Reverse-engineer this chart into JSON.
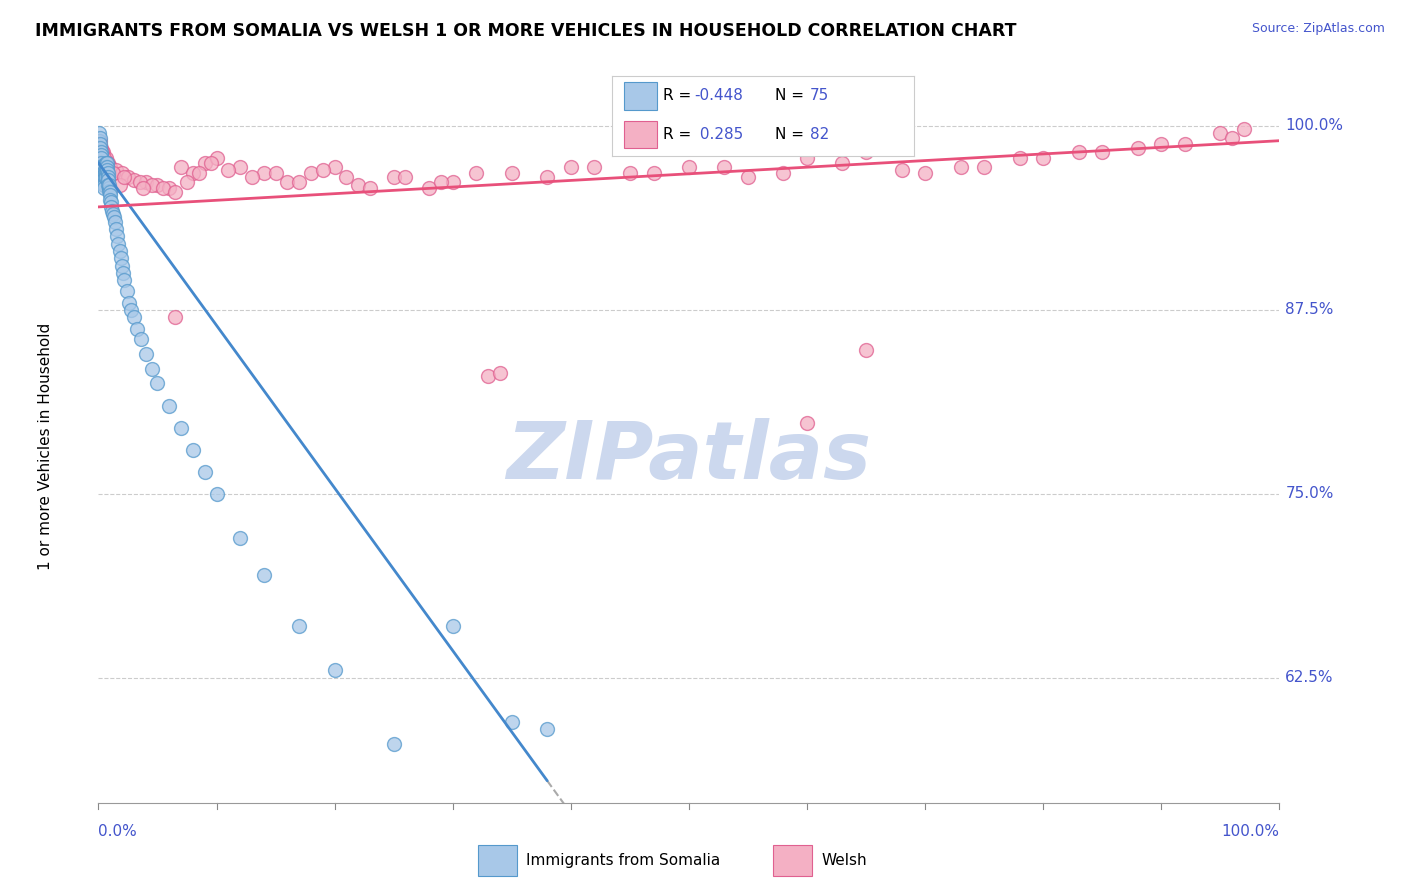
{
  "title": "IMMIGRANTS FROM SOMALIA VS WELSH 1 OR MORE VEHICLES IN HOUSEHOLD CORRELATION CHART",
  "source": "Source: ZipAtlas.com",
  "ylabel": "1 or more Vehicles in Household",
  "R1": -0.448,
  "N1": 75,
  "R2": 0.285,
  "N2": 82,
  "color1": "#a8c8e8",
  "color2": "#f4b0c4",
  "edge_color1": "#5599cc",
  "edge_color2": "#e06090",
  "line_color1": "#4488cc",
  "line_color2": "#e8507a",
  "dash_color": "#aaaaaa",
  "watermark": "ZIPatlas",
  "watermark_color": "#ccd8ee",
  "tick_label_color": "#4455cc",
  "legend_label1": "Immigrants from Somalia",
  "legend_label2": "Welsh",
  "xlim": [
    0,
    100
  ],
  "ylim": [
    0.54,
    1.025
  ],
  "yticks": [
    0.625,
    0.75,
    0.875,
    1.0
  ],
  "ytick_labels": [
    "62.5%",
    "75.0%",
    "87.5%",
    "100.0%"
  ],
  "somalia_x": [
    0.05,
    0.08,
    0.1,
    0.12,
    0.15,
    0.18,
    0.2,
    0.22,
    0.25,
    0.28,
    0.3,
    0.32,
    0.35,
    0.38,
    0.4,
    0.42,
    0.45,
    0.48,
    0.5,
    0.52,
    0.55,
    0.58,
    0.6,
    0.62,
    0.65,
    0.68,
    0.7,
    0.72,
    0.75,
    0.78,
    0.8,
    0.82,
    0.85,
    0.88,
    0.9,
    0.92,
    0.95,
    0.98,
    1.0,
    1.05,
    1.1,
    1.15,
    1.2,
    1.3,
    1.4,
    1.5,
    1.6,
    1.7,
    1.8,
    1.9,
    2.0,
    2.1,
    2.2,
    2.4,
    2.6,
    2.8,
    3.0,
    3.3,
    3.6,
    4.0,
    4.5,
    5.0,
    6.0,
    7.0,
    8.0,
    9.0,
    10.0,
    12.0,
    14.0,
    17.0,
    20.0,
    25.0,
    30.0,
    35.0,
    38.0
  ],
  "somalia_y": [
    0.995,
    0.99,
    0.992,
    0.988,
    0.985,
    0.982,
    0.98,
    0.978,
    0.975,
    0.973,
    0.972,
    0.97,
    0.968,
    0.966,
    0.965,
    0.963,
    0.961,
    0.96,
    0.958,
    0.97,
    0.968,
    0.965,
    0.975,
    0.972,
    0.968,
    0.965,
    0.975,
    0.972,
    0.97,
    0.968,
    0.965,
    0.963,
    0.96,
    0.958,
    0.956,
    0.96,
    0.955,
    0.953,
    0.95,
    0.948,
    0.945,
    0.942,
    0.94,
    0.938,
    0.935,
    0.93,
    0.925,
    0.92,
    0.915,
    0.91,
    0.905,
    0.9,
    0.895,
    0.888,
    0.88,
    0.875,
    0.87,
    0.862,
    0.855,
    0.845,
    0.835,
    0.825,
    0.81,
    0.795,
    0.78,
    0.765,
    0.75,
    0.72,
    0.695,
    0.66,
    0.63,
    0.58,
    0.66,
    0.595,
    0.59
  ],
  "welsh_x": [
    0.1,
    0.2,
    0.4,
    0.6,
    0.8,
    1.0,
    1.5,
    2.0,
    2.5,
    3.0,
    4.0,
    5.0,
    6.0,
    7.0,
    8.0,
    9.0,
    10.0,
    12.0,
    14.0,
    16.0,
    18.0,
    20.0,
    22.0,
    25.0,
    28.0,
    30.0,
    35.0,
    40.0,
    45.0,
    50.0,
    55.0,
    60.0,
    65.0,
    70.0,
    75.0,
    80.0,
    85.0,
    90.0,
    95.0,
    97.0,
    1.2,
    1.8,
    2.2,
    3.5,
    4.5,
    5.5,
    6.5,
    7.5,
    8.5,
    9.5,
    11.0,
    13.0,
    15.0,
    17.0,
    19.0,
    21.0,
    23.0,
    26.0,
    29.0,
    32.0,
    38.0,
    42.0,
    47.0,
    53.0,
    58.0,
    63.0,
    68.0,
    73.0,
    78.0,
    83.0,
    88.0,
    92.0,
    96.0,
    33.0,
    65.0,
    0.3,
    0.5,
    0.7,
    3.8,
    6.5,
    34.0,
    60.0
  ],
  "welsh_y": [
    0.99,
    0.985,
    0.982,
    0.978,
    0.975,
    0.972,
    0.97,
    0.968,
    0.965,
    0.963,
    0.962,
    0.96,
    0.958,
    0.972,
    0.968,
    0.975,
    0.978,
    0.972,
    0.968,
    0.962,
    0.968,
    0.972,
    0.96,
    0.965,
    0.958,
    0.962,
    0.968,
    0.972,
    0.968,
    0.972,
    0.965,
    0.978,
    0.982,
    0.968,
    0.972,
    0.978,
    0.982,
    0.988,
    0.995,
    0.998,
    0.968,
    0.96,
    0.965,
    0.962,
    0.96,
    0.958,
    0.955,
    0.962,
    0.968,
    0.975,
    0.97,
    0.965,
    0.968,
    0.962,
    0.97,
    0.965,
    0.958,
    0.965,
    0.962,
    0.968,
    0.965,
    0.972,
    0.968,
    0.972,
    0.968,
    0.975,
    0.97,
    0.972,
    0.978,
    0.982,
    0.985,
    0.988,
    0.992,
    0.83,
    0.848,
    0.982,
    0.978,
    0.975,
    0.958,
    0.87,
    0.832,
    0.798
  ]
}
